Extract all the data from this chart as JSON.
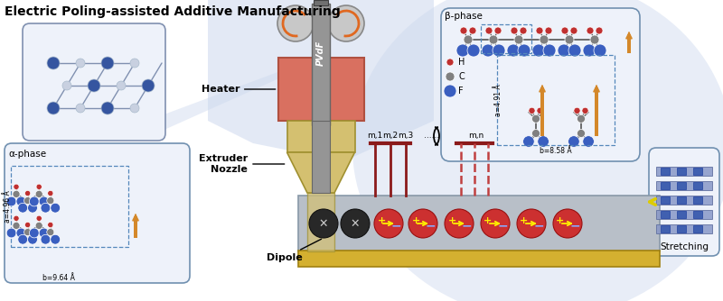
{
  "title": "Electric Poling-assisted Additive Manufacturing",
  "bg_color": "#ffffff",
  "title_fontsize": 10,
  "heater_color": "#d97060",
  "nozzle_color": "#d4c070",
  "pvdf_color": "#909090",
  "roller_color": "#c0c0c0",
  "base_color": "#d4b030",
  "electrode_color_solid": "#8b1a1a",
  "electrode_color_dash": "#c04040",
  "box_ec": "#7090b8",
  "alpha_phase_label": "α-phase",
  "beta_phase_label": "β-phase",
  "a_alpha": "a=4.96 Å",
  "b_alpha": "b=9.64 Å",
  "a_beta": "a=4.91 Å",
  "b_beta": "b=8.58 Å",
  "heater_label": "Heater",
  "extruder_label": "Extruder\nNozzle",
  "dipole_label": "Dipole",
  "stretching_label": "Stretching",
  "pvdf_label": "PVdF",
  "electrode_labels": [
    "m,1",
    "m,2",
    "m,3",
    "......",
    "m,n"
  ],
  "legend_items": [
    [
      "H",
      "#c03030"
    ],
    [
      "C",
      "#808080"
    ],
    [
      "F",
      "#3a5fc0"
    ]
  ],
  "arrow_color": "#d4882a",
  "H_col": "#c03030",
  "C_col": "#808080",
  "F_col": "#3a5fc0"
}
